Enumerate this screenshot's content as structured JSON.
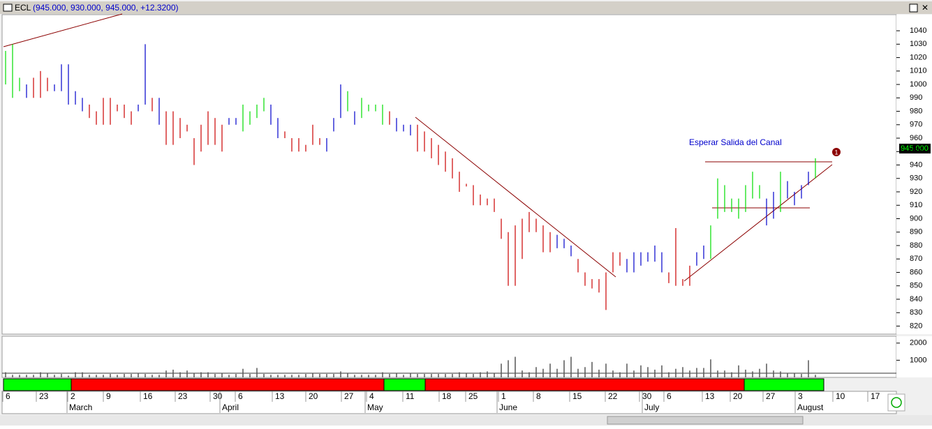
{
  "header": {
    "symbol": "ECL",
    "quote": "(945.000, 930.000, 945.000, +12.3200)"
  },
  "chart_data": [
    {
      "type": "hilo",
      "annotation": "Esperar Salida del Canal",
      "last_price_label": "945.000",
      "ylim": [
        814,
        1052
      ],
      "yticks": [
        820,
        830,
        840,
        850,
        860,
        870,
        880,
        890,
        900,
        910,
        920,
        930,
        940,
        950,
        960,
        970,
        980,
        990,
        1000,
        1010,
        1020,
        1030,
        1040
      ],
      "series": [
        {
          "highs": [
            1025,
            1030,
            1005,
            1000,
            1005,
            1010,
            1005,
            1000,
            1015,
            1015,
            995,
            990,
            985,
            980,
            990,
            990,
            985,
            985,
            980,
            985,
            1030,
            990,
            990,
            980,
            980,
            975,
            970,
            960,
            970,
            980,
            975,
            970,
            975,
            975,
            985,
            980,
            985,
            990,
            985,
            975,
            965,
            960,
            960,
            955,
            970,
            960,
            960,
            975,
            1000,
            995,
            980,
            990,
            985,
            985,
            985,
            980,
            975,
            970,
            970,
            970,
            965,
            960,
            955,
            950,
            945,
            935,
            926,
            925,
            918,
            915,
            915,
            900,
            890,
            895,
            900,
            905,
            900,
            895,
            890,
            888,
            885,
            880,
            870,
            860,
            855,
            855,
            860,
            875,
            875,
            870,
            875,
            875,
            875,
            880,
            875,
            860,
            893,
            855,
            865,
            875,
            880,
            895,
            930,
            925,
            915,
            915,
            925,
            935,
            925,
            915,
            920,
            935,
            928,
            920,
            925,
            935,
            945
          ],
          "lows": [
            1000,
            990,
            995,
            990,
            990,
            990,
            995,
            995,
            995,
            985,
            985,
            980,
            975,
            970,
            970,
            970,
            980,
            975,
            970,
            980,
            985,
            980,
            970,
            955,
            955,
            960,
            965,
            940,
            950,
            955,
            955,
            950,
            970,
            970,
            965,
            970,
            975,
            980,
            970,
            960,
            960,
            950,
            950,
            950,
            955,
            955,
            950,
            965,
            975,
            980,
            970,
            975,
            980,
            980,
            970,
            970,
            965,
            965,
            962,
            950,
            950,
            945,
            940,
            935,
            930,
            920,
            924,
            910,
            910,
            910,
            905,
            885,
            850,
            850,
            870,
            890,
            890,
            875,
            875,
            878,
            878,
            872,
            860,
            850,
            848,
            845,
            832,
            860,
            865,
            860,
            860,
            865,
            868,
            868,
            860,
            852,
            850,
            850,
            850,
            865,
            870,
            870,
            900,
            905,
            905,
            900,
            905,
            915,
            915,
            895,
            900,
            905,
            915,
            910,
            915,
            925,
            930
          ],
          "colors": [
            "#00dd00",
            "#00dd00",
            "#00dd00",
            "#0000cc",
            "#cc0000",
            "#cc0000",
            "#cc0000",
            "#0000cc",
            "#0000cc",
            "#0000cc",
            "#0000cc",
            "#0000cc",
            "#cc0000",
            "#cc0000",
            "#cc0000",
            "#cc0000",
            "#cc0000",
            "#cc0000",
            "#cc0000",
            "#0000cc",
            "#0000cc",
            "#cc0000",
            "#0000cc",
            "#cc0000",
            "#cc0000",
            "#cc0000",
            "#cc0000",
            "#cc0000",
            "#cc0000",
            "#cc0000",
            "#cc0000",
            "#cc0000",
            "#0000cc",
            "#0000cc",
            "#00dd00",
            "#00dd00",
            "#00dd00",
            "#00dd00",
            "#0000cc",
            "#0000cc",
            "#cc0000",
            "#cc0000",
            "#cc0000",
            "#cc0000",
            "#cc0000",
            "#cc0000",
            "#0000cc",
            "#0000cc",
            "#0000cc",
            "#00dd00",
            "#0000cc",
            "#00dd00",
            "#00dd00",
            "#00dd00",
            "#00dd00",
            "#cc0000",
            "#0000cc",
            "#0000cc",
            "#0000cc",
            "#cc0000",
            "#cc0000",
            "#cc0000",
            "#cc0000",
            "#cc0000",
            "#cc0000",
            "#cc0000",
            "#cc0000",
            "#cc0000",
            "#cc0000",
            "#cc0000",
            "#cc0000",
            "#cc0000",
            "#cc0000",
            "#cc0000",
            "#cc0000",
            "#cc0000",
            "#cc0000",
            "#cc0000",
            "#cc0000",
            "#0000cc",
            "#0000cc",
            "#0000cc",
            "#cc0000",
            "#cc0000",
            "#cc0000",
            "#cc0000",
            "#cc0000",
            "#cc0000",
            "#cc0000",
            "#0000cc",
            "#0000cc",
            "#0000cc",
            "#0000cc",
            "#0000cc",
            "#0000cc",
            "#cc0000",
            "#cc0000",
            "#cc0000",
            "#cc0000",
            "#0000cc",
            "#0000cc",
            "#00dd00",
            "#00dd00",
            "#00dd00",
            "#00dd00",
            "#00dd00",
            "#00dd00",
            "#00dd00",
            "#00dd00",
            "#0000cc",
            "#0000cc",
            "#00dd00",
            "#0000cc",
            "#0000cc",
            "#0000cc",
            "#0000cc",
            "#00dd00"
          ]
        }
      ]
    },
    {
      "type": "volume",
      "color": "#555555",
      "ylim": [
        0,
        2400
      ],
      "yticks": [
        1000,
        2000
      ],
      "values": [
        300,
        150,
        150,
        150,
        150,
        300,
        250,
        150,
        200,
        100,
        300,
        300,
        150,
        150,
        150,
        200,
        150,
        200,
        200,
        250,
        200,
        150,
        150,
        400,
        450,
        300,
        400,
        250,
        300,
        300,
        200,
        250,
        150,
        200,
        500,
        200,
        550,
        200,
        150,
        150,
        150,
        150,
        150,
        200,
        250,
        200,
        200,
        200,
        350,
        250,
        150,
        150,
        150,
        150,
        300,
        200,
        250,
        150,
        250,
        200,
        200,
        200,
        200,
        200,
        200,
        300,
        250,
        200,
        300,
        350,
        250,
        800,
        1000,
        1200,
        400,
        300,
        600,
        500,
        800,
        500,
        1000,
        1200,
        500,
        600,
        900,
        450,
        800,
        400,
        300,
        800,
        400,
        700,
        600,
        450,
        700,
        300,
        500,
        600,
        400,
        550,
        550,
        1050,
        400,
        400,
        300,
        700,
        450,
        350,
        500,
        800,
        400,
        350,
        250,
        250,
        200,
        1000,
        150
      ]
    }
  ],
  "x_axis": {
    "days": [
      "6",
      "23",
      "2",
      "9",
      "16",
      "23",
      "30",
      "6",
      "13",
      "20",
      "27",
      "4",
      "11",
      "18",
      "25",
      "1",
      "8",
      "15",
      "22",
      "30",
      "6",
      "13",
      "20",
      "27",
      "3",
      "10",
      "17"
    ],
    "months": [
      "March",
      "April",
      "May",
      "June",
      "July",
      "August"
    ]
  }
}
